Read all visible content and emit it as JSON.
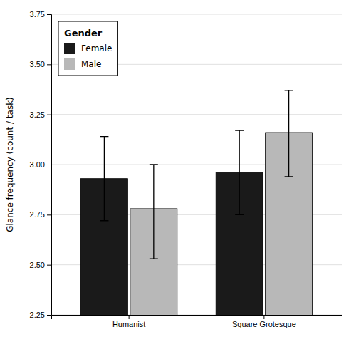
{
  "chart_data": {
    "type": "bar",
    "categories": [
      "Humanist",
      "Square Grotesque"
    ],
    "series": [
      {
        "name": "Female",
        "color": "#1a1a1a",
        "values": [
          2.93,
          2.96
        ],
        "errors": [
          0.21,
          0.21
        ]
      },
      {
        "name": "Male",
        "color": "#b8b8b8",
        "values": [
          2.78,
          3.16
        ],
        "errors_upper": [
          0.22,
          0.21
        ],
        "errors_lower": [
          0.25,
          0.22
        ]
      }
    ],
    "ylabel": "Glance frequency (count / task)",
    "legend_title": "Gender",
    "legend": "upper left",
    "grid": true,
    "ylim": [
      2.25,
      3.75
    ],
    "yticks": [
      2.25,
      {
        "value": 2.5,
        "label": "2.50"
      },
      2.75,
      {
        "value": 3,
        "label": "3.00"
      },
      3.25,
      {
        "value": 3.5,
        "label": "3.50"
      },
      3.75
    ]
  }
}
